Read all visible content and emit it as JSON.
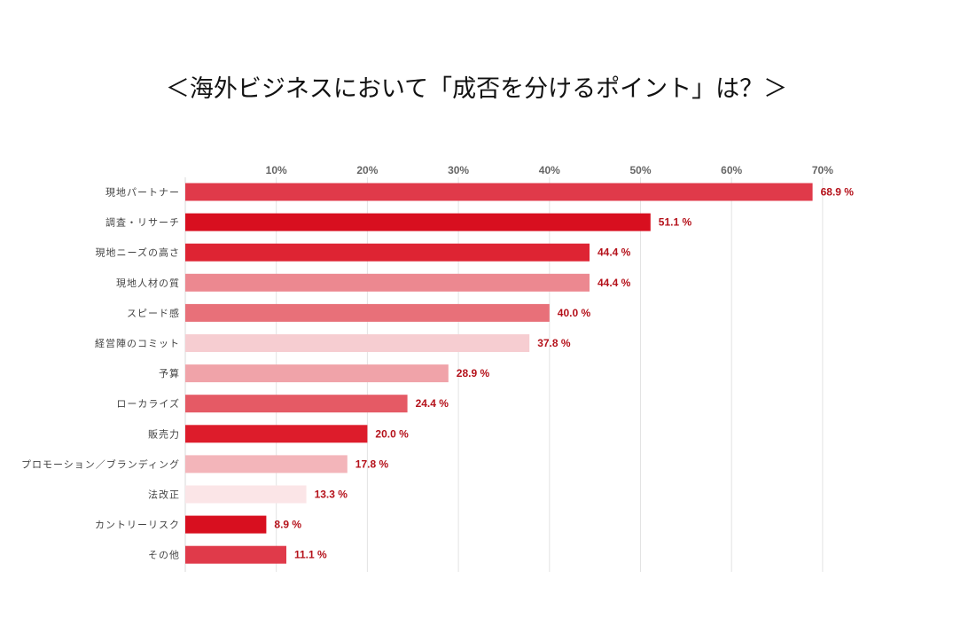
{
  "chart_data": {
    "type": "bar",
    "orientation": "horizontal",
    "title": "＜海外ビジネスにおいて「成否を分けるポイント」は？＞",
    "xlabel": "",
    "ylabel": "",
    "xlim": [
      0,
      70
    ],
    "ticks": [
      10,
      20,
      30,
      40,
      50,
      60,
      70
    ],
    "tick_labels": [
      "10%",
      "20%",
      "30%",
      "40%",
      "50%",
      "60%",
      "70%"
    ],
    "grid": true,
    "categories": [
      "現地パートナー",
      "調査・リサーチ",
      "現地ニーズの高さ",
      "現地人材の質",
      "スピード感",
      "経営陣のコミット",
      "予算",
      "ローカライズ",
      "販売力",
      "プロモーション／ブランディング",
      "法改正",
      "カントリーリスク",
      "その他"
    ],
    "values": [
      68.9,
      51.1,
      44.4,
      44.4,
      40.0,
      37.8,
      28.9,
      24.4,
      20.0,
      17.8,
      13.3,
      8.9,
      11.1
    ],
    "value_labels": [
      "68.9 %",
      "51.1 %",
      "44.4 %",
      "44.4 %",
      "40.0 %",
      "37.8 %",
      "28.9 %",
      "24.4 %",
      "20.0 %",
      "17.8 %",
      "13.3 %",
      "8.9 %",
      "11.1 %"
    ],
    "colors": [
      "#e03a4a",
      "#d80f1f",
      "#de2433",
      "#ec8890",
      "#e87079",
      "#f6cdd1",
      "#f0a3a9",
      "#e55a65",
      "#dd1c2b",
      "#f3b5ba",
      "#fbe5e7",
      "#d80f1f",
      "#e03a4a"
    ]
  }
}
